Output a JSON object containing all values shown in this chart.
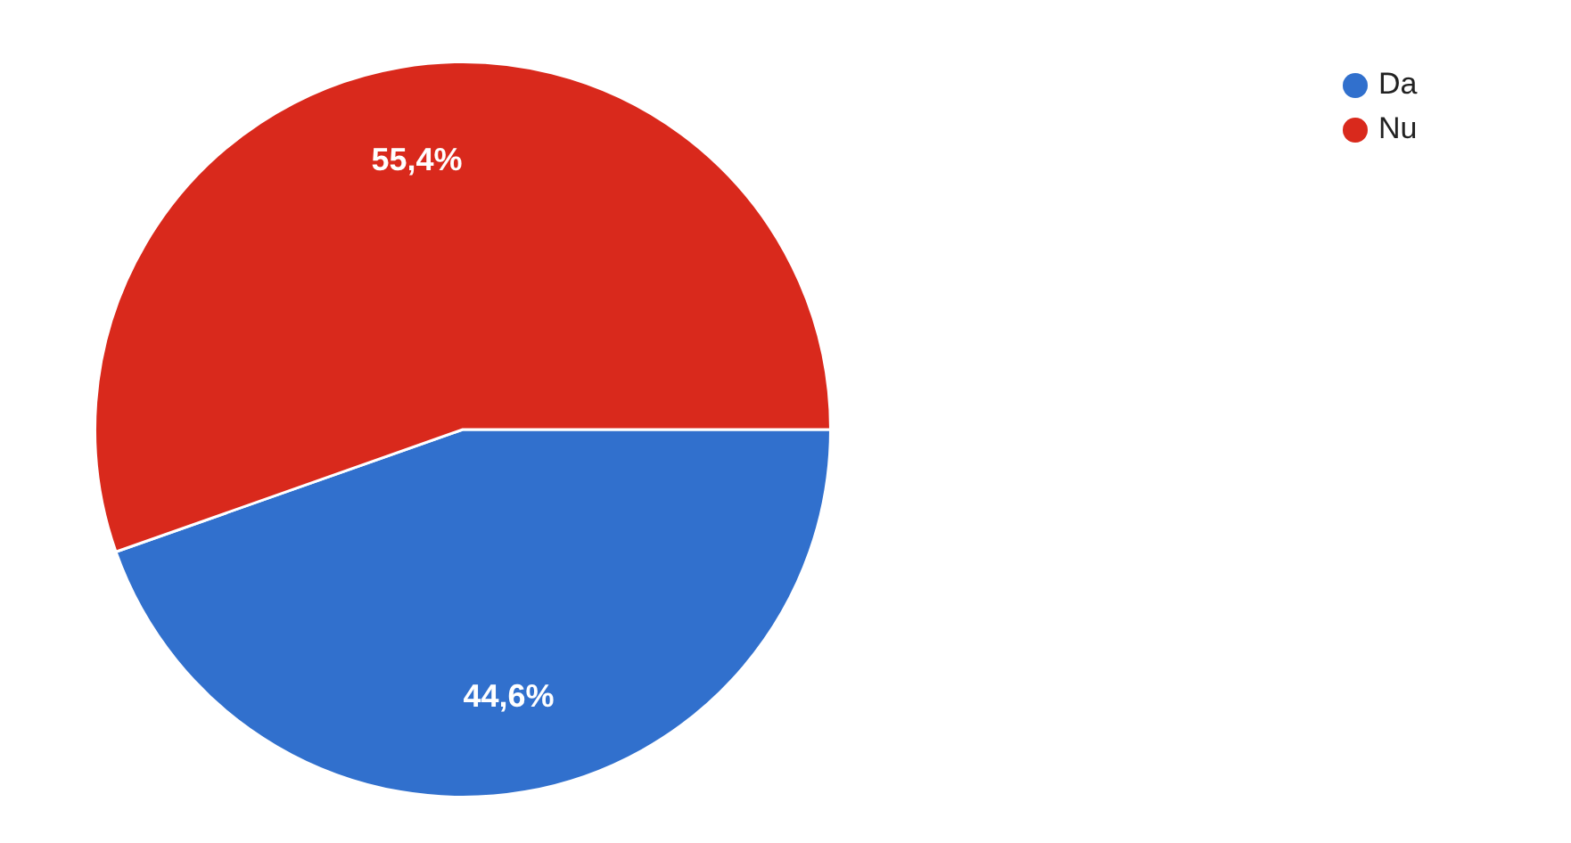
{
  "chart_data": {
    "type": "pie",
    "categories": [
      "Da",
      "Nu"
    ],
    "values": [
      44.6,
      55.4
    ],
    "colors": [
      "#3170cd",
      "#d9291c"
    ],
    "value_labels": [
      "44,6%",
      "55,4%"
    ],
    "legend": "top right"
  }
}
